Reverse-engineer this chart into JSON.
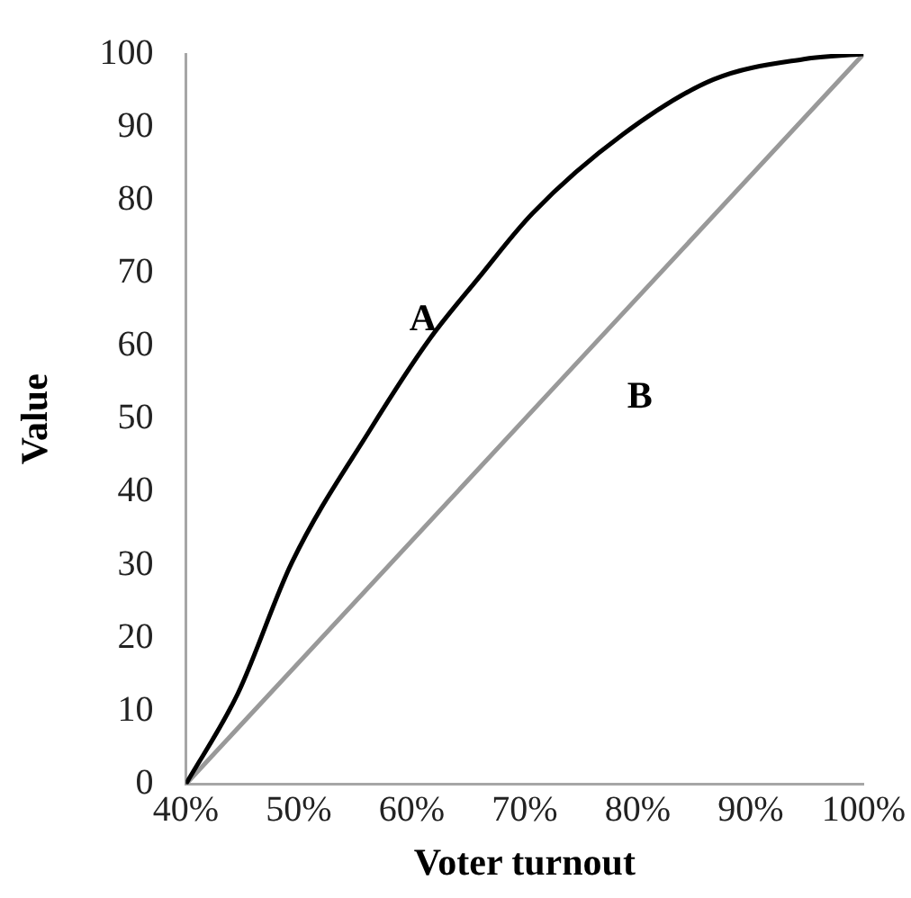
{
  "chart_data": {
    "type": "line",
    "xlabel": "Voter turnout",
    "ylabel": "Value",
    "series": [
      {
        "name": "A",
        "color": "#000000",
        "x": [
          40,
          44.6,
          49.4,
          56.3,
          61.6,
          65.9,
          70.7,
          78.7,
          86.7,
          94.7,
          100
        ],
        "values": [
          0,
          12.4,
          30.4,
          48.5,
          61,
          69.3,
          78.2,
          89,
          96.5,
          99.3,
          100
        ]
      },
      {
        "name": "B",
        "color": "#999999",
        "x": [
          40,
          100
        ],
        "values": [
          0,
          100
        ]
      }
    ],
    "xlim": [
      40,
      100
    ],
    "xticks": [
      {
        "value": 40,
        "label": "40%"
      },
      {
        "value": 50,
        "label": "50%"
      },
      {
        "value": 60,
        "label": "60%"
      },
      {
        "value": 70,
        "label": "70%"
      },
      {
        "value": 80,
        "label": "80%"
      },
      {
        "value": 90,
        "label": "90%"
      },
      {
        "value": 100,
        "label": "100%"
      }
    ],
    "ylim": [
      0,
      100
    ],
    "yticks": [
      0,
      10,
      20,
      30,
      40,
      50,
      60,
      70,
      80,
      90,
      100
    ],
    "grid": false,
    "legend": false,
    "marker": "none",
    "line_style": "solid"
  }
}
